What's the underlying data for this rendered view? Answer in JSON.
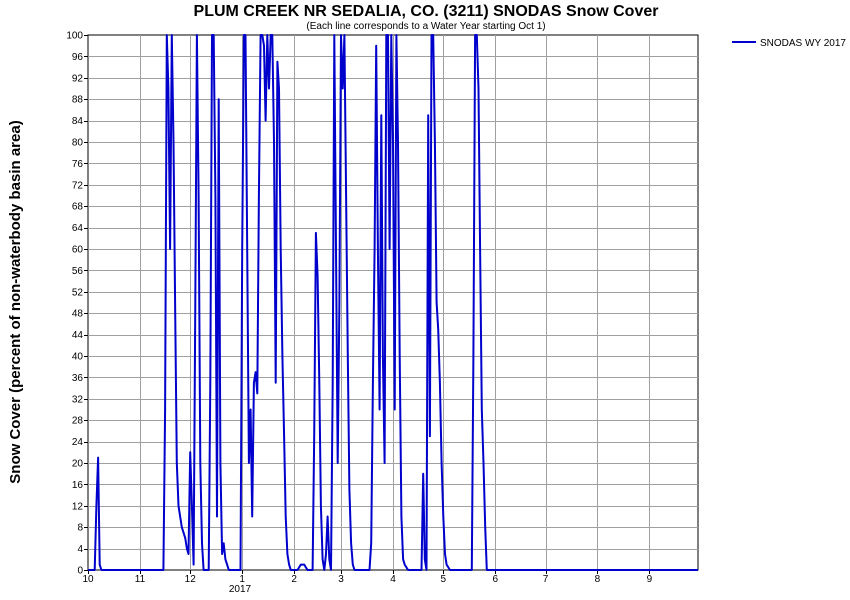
{
  "chart_data": {
    "type": "line",
    "title": "PLUM CREEK NR SEDALIA, CO. (3211) SNODAS Snow Cover",
    "subtitle": "(Each line corresponds to a Water Year starting Oct 1)",
    "ylabel": "Snow Cover (percent of non-waterbody basin area)",
    "xlabel": "",
    "ylim": [
      0,
      100
    ],
    "yticks": [
      0,
      4,
      8,
      12,
      16,
      20,
      24,
      28,
      32,
      36,
      40,
      44,
      48,
      52,
      56,
      60,
      64,
      68,
      72,
      76,
      80,
      84,
      88,
      92,
      96,
      100
    ],
    "xlim": [
      "2016-10-01",
      "2017-09-30"
    ],
    "xticks": [
      {
        "label": "10",
        "date": "2016-10-01"
      },
      {
        "label": "11",
        "date": "2016-11-01"
      },
      {
        "label": "12",
        "date": "2016-12-01"
      },
      {
        "label": "1",
        "date": "2017-01-01"
      },
      {
        "label": "2",
        "date": "2017-02-01"
      },
      {
        "label": "3",
        "date": "2017-03-01"
      },
      {
        "label": "4",
        "date": "2017-04-01"
      },
      {
        "label": "5",
        "date": "2017-05-01"
      },
      {
        "label": "6",
        "date": "2017-06-01"
      },
      {
        "label": "7",
        "date": "2017-07-01"
      },
      {
        "label": "8",
        "date": "2017-08-01"
      },
      {
        "label": "9",
        "date": "2017-09-01"
      }
    ],
    "year_label": "2017",
    "grid": true,
    "legend_position": "top-right",
    "series": [
      {
        "name": "SNODAS WY 2017",
        "color": "#0000cc",
        "points": [
          [
            "2016-10-01",
            0
          ],
          [
            "2016-10-05",
            0
          ],
          [
            "2016-10-06",
            12
          ],
          [
            "2016-10-07",
            21
          ],
          [
            "2016-10-08",
            1
          ],
          [
            "2016-10-09",
            0
          ],
          [
            "2016-11-15",
            0
          ],
          [
            "2016-11-16",
            30
          ],
          [
            "2016-11-17",
            100
          ],
          [
            "2016-11-18",
            90
          ],
          [
            "2016-11-19",
            60
          ],
          [
            "2016-11-20",
            100
          ],
          [
            "2016-11-21",
            80
          ],
          [
            "2016-11-22",
            50
          ],
          [
            "2016-11-23",
            20
          ],
          [
            "2016-11-24",
            12
          ],
          [
            "2016-11-26",
            8
          ],
          [
            "2016-11-28",
            6
          ],
          [
            "2016-11-29",
            4
          ],
          [
            "2016-11-30",
            3
          ],
          [
            "2016-12-01",
            22
          ],
          [
            "2016-12-02",
            12
          ],
          [
            "2016-12-03",
            1
          ],
          [
            "2016-12-04",
            50
          ],
          [
            "2016-12-05",
            100
          ],
          [
            "2016-12-06",
            70
          ],
          [
            "2016-12-07",
            20
          ],
          [
            "2016-12-08",
            5
          ],
          [
            "2016-12-09",
            0
          ],
          [
            "2016-12-12",
            0
          ],
          [
            "2016-12-13",
            35
          ],
          [
            "2016-12-14",
            100
          ],
          [
            "2016-12-15",
            100
          ],
          [
            "2016-12-16",
            70
          ],
          [
            "2016-12-17",
            10
          ],
          [
            "2016-12-18",
            88
          ],
          [
            "2016-12-19",
            20
          ],
          [
            "2016-12-20",
            3
          ],
          [
            "2016-12-21",
            5
          ],
          [
            "2016-12-22",
            2
          ],
          [
            "2016-12-23",
            1
          ],
          [
            "2016-12-24",
            0
          ],
          [
            "2016-12-30",
            0
          ],
          [
            "2016-12-31",
            0
          ],
          [
            "2017-01-01",
            60
          ],
          [
            "2017-01-02",
            100
          ],
          [
            "2017-01-03",
            100
          ],
          [
            "2017-01-04",
            60
          ],
          [
            "2017-01-05",
            20
          ],
          [
            "2017-01-06",
            30
          ],
          [
            "2017-01-07",
            10
          ],
          [
            "2017-01-08",
            35
          ],
          [
            "2017-01-09",
            37
          ],
          [
            "2017-01-10",
            33
          ],
          [
            "2017-01-11",
            70
          ],
          [
            "2017-01-12",
            100
          ],
          [
            "2017-01-13",
            100
          ],
          [
            "2017-01-14",
            98
          ],
          [
            "2017-01-15",
            84
          ],
          [
            "2017-01-16",
            100
          ],
          [
            "2017-01-17",
            90
          ],
          [
            "2017-01-18",
            100
          ],
          [
            "2017-01-19",
            100
          ],
          [
            "2017-01-20",
            80
          ],
          [
            "2017-01-21",
            35
          ],
          [
            "2017-01-22",
            95
          ],
          [
            "2017-01-23",
            90
          ],
          [
            "2017-01-24",
            60
          ],
          [
            "2017-01-25",
            40
          ],
          [
            "2017-01-26",
            25
          ],
          [
            "2017-01-27",
            10
          ],
          [
            "2017-01-28",
            3
          ],
          [
            "2017-01-29",
            1
          ],
          [
            "2017-01-30",
            0
          ],
          [
            "2017-02-03",
            0
          ],
          [
            "2017-02-05",
            1
          ],
          [
            "2017-02-07",
            1
          ],
          [
            "2017-02-09",
            0
          ],
          [
            "2017-02-12",
            0
          ],
          [
            "2017-02-13",
            25
          ],
          [
            "2017-02-14",
            63
          ],
          [
            "2017-02-15",
            55
          ],
          [
            "2017-02-16",
            35
          ],
          [
            "2017-02-17",
            12
          ],
          [
            "2017-02-18",
            2
          ],
          [
            "2017-02-19",
            0
          ],
          [
            "2017-02-20",
            3
          ],
          [
            "2017-02-21",
            10
          ],
          [
            "2017-02-22",
            2
          ],
          [
            "2017-02-23",
            0
          ],
          [
            "2017-02-24",
            35
          ],
          [
            "2017-02-25",
            100
          ],
          [
            "2017-02-26",
            60
          ],
          [
            "2017-02-27",
            20
          ],
          [
            "2017-02-28",
            50
          ],
          [
            "2017-03-01",
            100
          ],
          [
            "2017-03-02",
            90
          ],
          [
            "2017-03-03",
            100
          ],
          [
            "2017-03-04",
            70
          ],
          [
            "2017-03-05",
            40
          ],
          [
            "2017-03-06",
            15
          ],
          [
            "2017-03-07",
            5
          ],
          [
            "2017-03-08",
            1
          ],
          [
            "2017-03-09",
            0
          ],
          [
            "2017-03-18",
            0
          ],
          [
            "2017-03-19",
            5
          ],
          [
            "2017-03-20",
            35
          ],
          [
            "2017-03-21",
            60
          ],
          [
            "2017-03-22",
            98
          ],
          [
            "2017-03-23",
            60
          ],
          [
            "2017-03-24",
            30
          ],
          [
            "2017-03-25",
            85
          ],
          [
            "2017-03-26",
            40
          ],
          [
            "2017-03-27",
            20
          ],
          [
            "2017-03-28",
            100
          ],
          [
            "2017-03-29",
            100
          ],
          [
            "2017-03-30",
            60
          ],
          [
            "2017-03-31",
            100
          ],
          [
            "2017-04-01",
            80
          ],
          [
            "2017-04-02",
            30
          ],
          [
            "2017-04-03",
            100
          ],
          [
            "2017-04-04",
            80
          ],
          [
            "2017-04-05",
            40
          ],
          [
            "2017-04-06",
            10
          ],
          [
            "2017-04-07",
            2
          ],
          [
            "2017-04-08",
            1
          ],
          [
            "2017-04-10",
            0
          ],
          [
            "2017-04-18",
            0
          ],
          [
            "2017-04-19",
            18
          ],
          [
            "2017-04-20",
            2
          ],
          [
            "2017-04-21",
            0
          ],
          [
            "2017-04-22",
            85
          ],
          [
            "2017-04-23",
            25
          ],
          [
            "2017-04-24",
            100
          ],
          [
            "2017-04-25",
            100
          ],
          [
            "2017-04-26",
            80
          ],
          [
            "2017-04-27",
            50
          ],
          [
            "2017-04-28",
            45
          ],
          [
            "2017-04-29",
            35
          ],
          [
            "2017-04-30",
            20
          ],
          [
            "2017-05-01",
            10
          ],
          [
            "2017-05-02",
            3
          ],
          [
            "2017-05-03",
            1
          ],
          [
            "2017-05-05",
            0
          ],
          [
            "2017-05-18",
            0
          ],
          [
            "2017-05-19",
            40
          ],
          [
            "2017-05-20",
            100
          ],
          [
            "2017-05-21",
            100
          ],
          [
            "2017-05-22",
            90
          ],
          [
            "2017-05-23",
            60
          ],
          [
            "2017-05-24",
            30
          ],
          [
            "2017-05-25",
            20
          ],
          [
            "2017-05-26",
            8
          ],
          [
            "2017-05-27",
            0
          ],
          [
            "2017-09-30",
            0
          ]
        ]
      }
    ]
  }
}
